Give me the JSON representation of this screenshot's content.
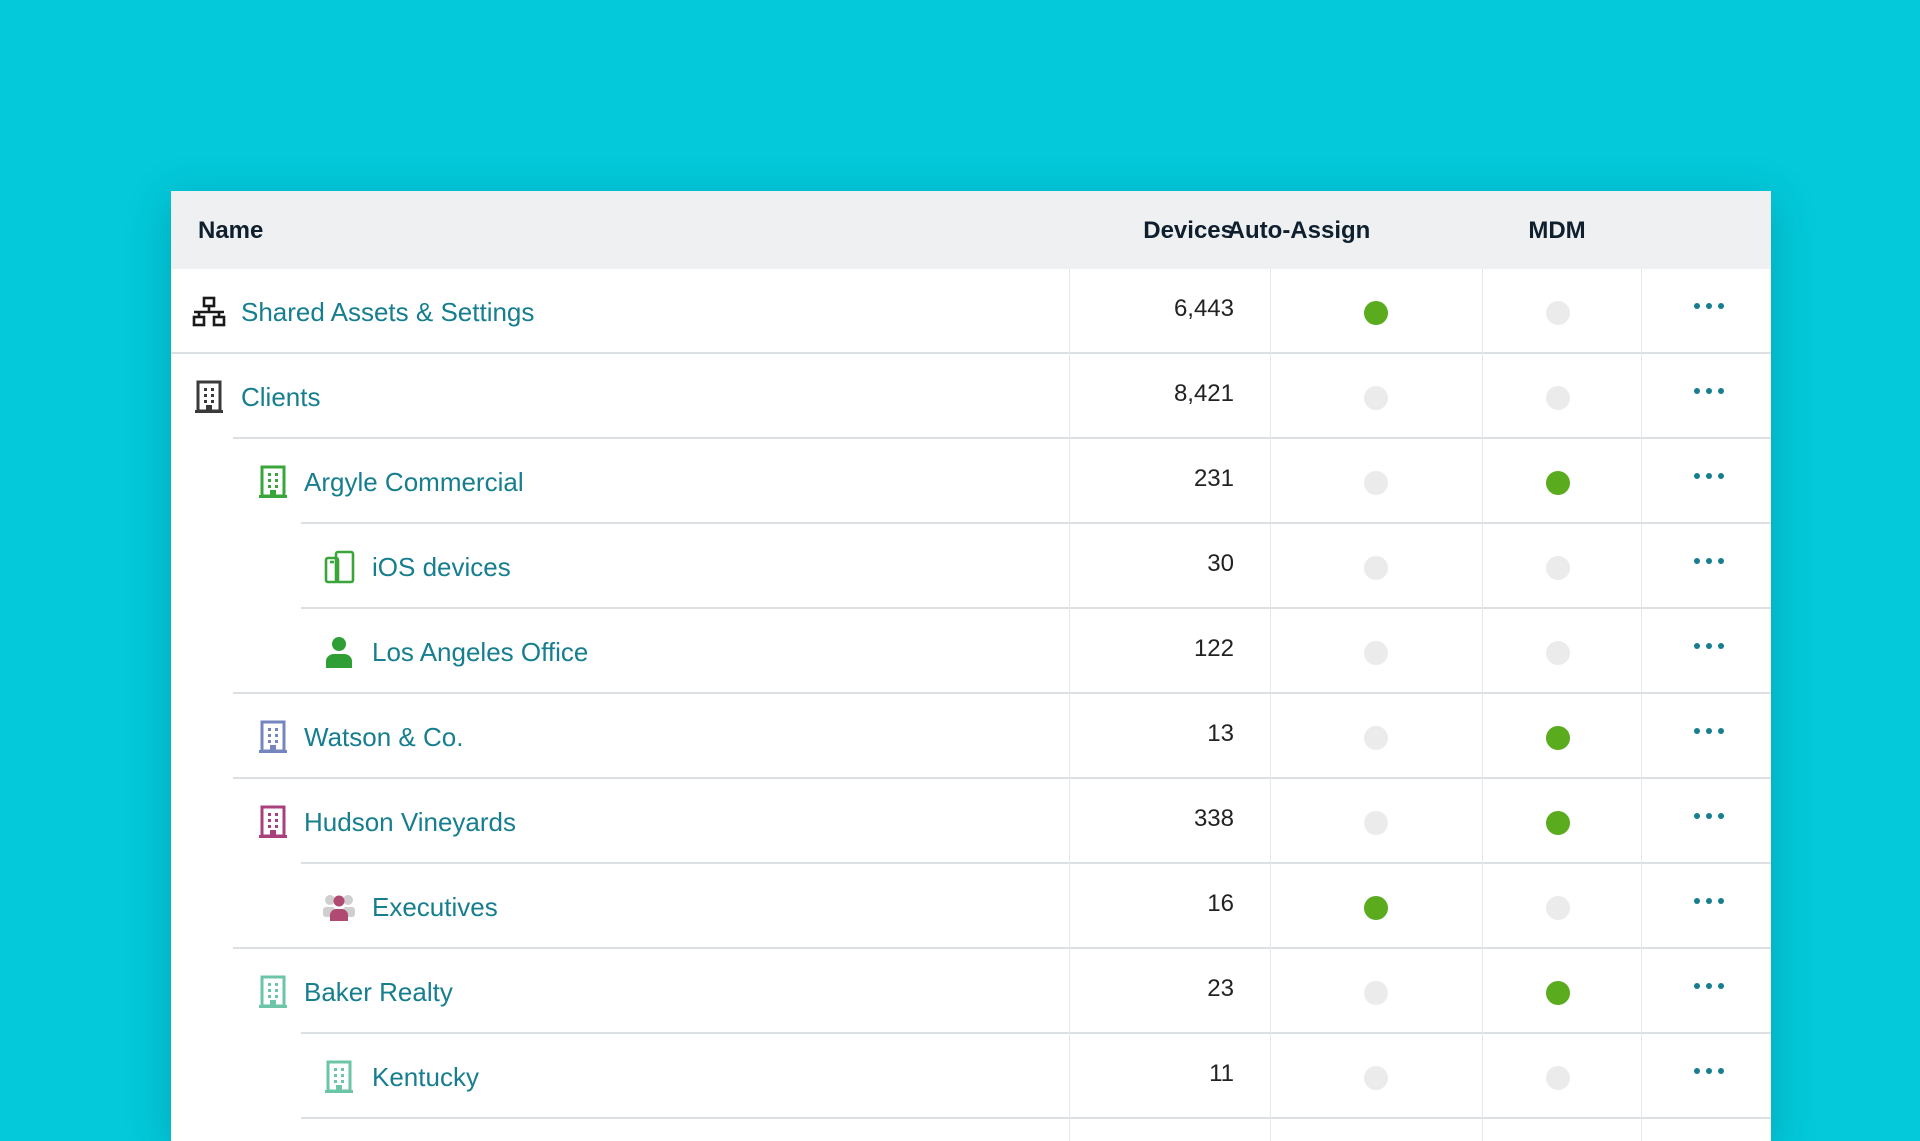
{
  "colors": {
    "background": "#03c9da",
    "link": "#167e8e",
    "on": "#5aab1e",
    "off": "#ebebeb"
  },
  "header": {
    "name": "Name",
    "devices": "Devices",
    "auto_assign": "Auto-Assign",
    "mdm": "MDM"
  },
  "rows": [
    {
      "name": "Shared Assets & Settings",
      "devices": "6,443",
      "auto_assign": true,
      "mdm": false,
      "level": 0,
      "icon": "network-icon",
      "icon_color": "#1a1a1a"
    },
    {
      "name": "Clients",
      "devices": "8,421",
      "auto_assign": false,
      "mdm": false,
      "level": 0,
      "icon": "building-icon",
      "icon_color": "#3a3a3a"
    },
    {
      "name": "Argyle Commercial",
      "devices": "231",
      "auto_assign": false,
      "mdm": true,
      "level": 1,
      "icon": "building-icon",
      "icon_color": "#3aa53a"
    },
    {
      "name": "iOS devices",
      "devices": "30",
      "auto_assign": false,
      "mdm": false,
      "level": 2,
      "icon": "devices-icon",
      "icon_color": "#3aa53a"
    },
    {
      "name": "Los Angeles Office",
      "devices": "122",
      "auto_assign": false,
      "mdm": false,
      "level": 2,
      "icon": "user-icon",
      "icon_color": "#2f9e35"
    },
    {
      "name": "Watson & Co.",
      "devices": "13",
      "auto_assign": false,
      "mdm": true,
      "level": 1,
      "icon": "building-icon",
      "icon_color": "#7585c0"
    },
    {
      "name": "Hudson Vineyards",
      "devices": "338",
      "auto_assign": false,
      "mdm": true,
      "level": 1,
      "icon": "building-icon",
      "icon_color": "#a8407c"
    },
    {
      "name": "Executives",
      "devices": "16",
      "auto_assign": true,
      "mdm": false,
      "level": 2,
      "icon": "group-icon",
      "icon_color": "#b04a72"
    },
    {
      "name": "Baker Realty",
      "devices": "23",
      "auto_assign": false,
      "mdm": true,
      "level": 1,
      "icon": "building-icon",
      "icon_color": "#6cc5a6"
    },
    {
      "name": "Kentucky",
      "devices": "11",
      "auto_assign": false,
      "mdm": false,
      "level": 2,
      "icon": "building-icon",
      "icon_color": "#6cc5a6"
    }
  ]
}
